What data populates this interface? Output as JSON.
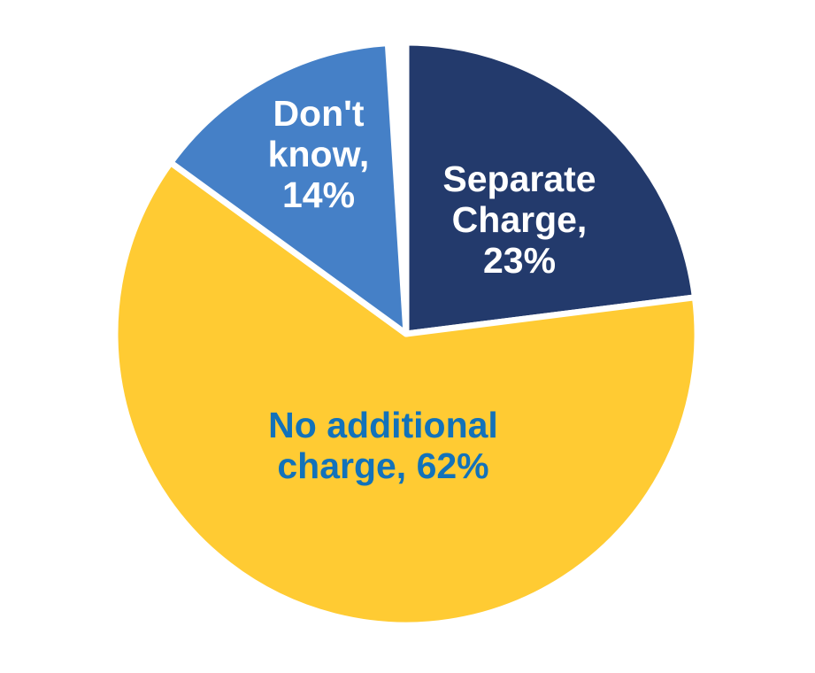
{
  "chart_data": {
    "type": "pie",
    "title": "",
    "start_angle_deg": 0,
    "direction": "clockwise",
    "background_color": "#FFFFFF",
    "separator_color": "#FFFFFF",
    "legend": "none",
    "slices": [
      {
        "label": "Separate Charge",
        "value_pct": 23,
        "color": "#233A6C",
        "text_color": "#FFFFFF",
        "label_text": "Separate Charge, 23%",
        "label_lines": [
          "Separate",
          "Charge,",
          "23%"
        ]
      },
      {
        "label": "No additional charge",
        "value_pct": 62,
        "color": "#FFCB33",
        "text_color": "#1272BA",
        "label_text": "No additional charge, 62%",
        "label_lines": [
          "No additional",
          "charge, 62%"
        ]
      },
      {
        "label": "Don't know",
        "value_pct": 14,
        "color": "#4580C7",
        "text_color": "#FFFFFF",
        "label_text": "Don't know, 14%",
        "label_lines": [
          "Don't",
          "know,",
          "14%"
        ]
      }
    ]
  }
}
